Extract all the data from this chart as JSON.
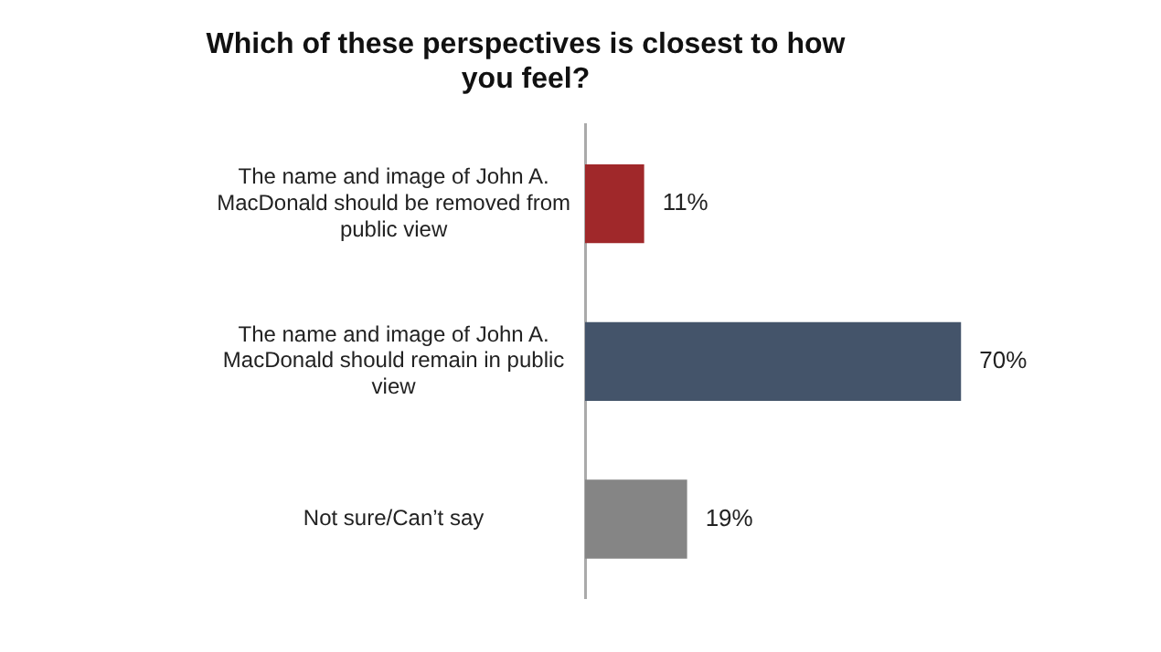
{
  "chart_data": {
    "type": "bar",
    "orientation": "horizontal",
    "title": "Which of these perspectives is closest to how you feel?",
    "categories": [
      "The name and image of John A. MacDonald should be removed from public view",
      "The name and image of John A. MacDonald should remain in public view",
      "Not sure/Can’t say"
    ],
    "values": [
      11,
      70,
      19
    ],
    "colors": [
      "#a0282a",
      "#44546a",
      "#858585"
    ],
    "value_labels": [
      "11%",
      "70%",
      "19%"
    ],
    "tick_labels": "y",
    "legend": false
  }
}
